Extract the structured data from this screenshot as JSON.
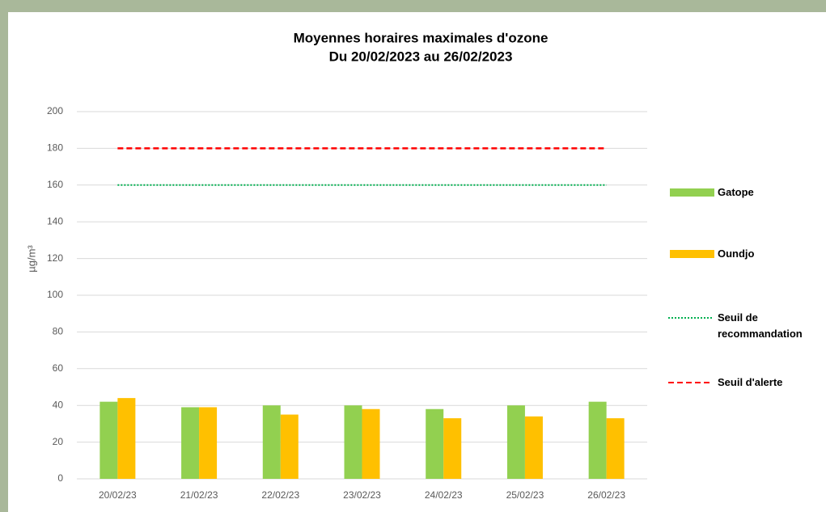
{
  "chart_data": {
    "type": "bar",
    "title": "Moyennes horaires maximales  d'ozone",
    "subtitle": "Du 20/02/2023 au 26/02/2023",
    "y_label": "µg/m³",
    "categories": [
      "20/02/23",
      "21/02/23",
      "22/02/23",
      "23/02/23",
      "24/02/23",
      "25/02/23",
      "26/02/23"
    ],
    "series": [
      {
        "name": "Gatope",
        "type": "bar",
        "color": "#92d050",
        "values": [
          42,
          39,
          40,
          40,
          38,
          40,
          42
        ]
      },
      {
        "name": "Oundjo",
        "type": "bar",
        "color": "#ffc000",
        "values": [
          44,
          39,
          35,
          38,
          33,
          34,
          33
        ]
      },
      {
        "name": "Seuil de recommandation",
        "type": "line",
        "dash": "dotted",
        "color": "#00b050",
        "values": [
          160,
          160,
          160,
          160,
          160,
          160,
          160
        ]
      },
      {
        "name": "Seuil d'alerte",
        "type": "line",
        "dash": "dashed",
        "color": "#ff0000",
        "values": [
          180,
          180,
          180,
          180,
          180,
          180,
          180
        ]
      }
    ],
    "ylim": [
      0,
      200
    ],
    "yticks": [
      0,
      20,
      40,
      60,
      80,
      100,
      120,
      140,
      160,
      180,
      200
    ],
    "grid": true,
    "legend": "right"
  }
}
